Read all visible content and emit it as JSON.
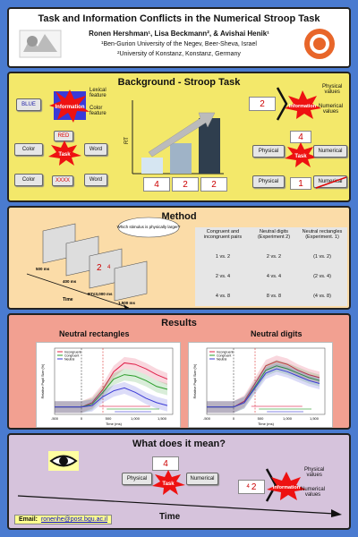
{
  "header": {
    "title": "Task and Information Conflicts in the Numerical Stroop Task",
    "authors": "Ronen Hershman¹, Lisa Beckmann², & Avishai Henik¹",
    "affiliation1": "¹Ben-Gurion University of the Negev, Beer-Sheva, Israel",
    "affiliation2": "²University of Konstanz, Konstanz, Germany"
  },
  "background": {
    "title": "Background - Stroop Task",
    "lexical_label": "Lexical\nfeature",
    "color_label": "Color\nfeature",
    "blue_word": "BLUE",
    "information_star": "Information",
    "red_word": "RED",
    "task_star": "Task",
    "color_box": "Color",
    "word_box": "Word",
    "xxxx": "XXXX",
    "rt_label": "RT",
    "cards": [
      "4",
      "2",
      "2"
    ],
    "physical_values": "Physical\nvalues",
    "numerical_values": "Numerical\nvalues",
    "number_pair_left": "2",
    "number_pair_right": "2",
    "info_num_card": "4",
    "physical_box": "Physical",
    "numerical_box": "Numerical",
    "card_one": "1"
  },
  "method": {
    "title": "Method",
    "bubble": "Which stimulus is physically larger?",
    "time_labels": [
      "500 ms",
      "400 ms",
      "RT≤3,000 ms",
      "1,500 ms"
    ],
    "stim_nums": [
      "2",
      "4"
    ],
    "time_axis": "Time",
    "table_headers": [
      "Congruent and incongruent pairs",
      "Neutral digits (Experiment 2)",
      "Neutral rectangles (Experiment. 1)"
    ],
    "table_rows": [
      [
        "1 vs. 2",
        "2 vs. 2",
        "(1 vs. 2)"
      ],
      [
        "2 vs. 4",
        "4 vs. 4",
        "(2 vs. 4)"
      ],
      [
        "4 vs. 8",
        "8 vs. 8",
        "(4 vs. 8)"
      ]
    ]
  },
  "results": {
    "title": "Results",
    "subtitle_left": "Neutral rectangles",
    "subtitle_right": "Neutral digits",
    "legend": [
      "Incongruent",
      "Congruent",
      "Neutral"
    ],
    "ylabel": "Relative Pupil Size (%)",
    "xlabel": "Time (ms)",
    "xticks": [
      "-500",
      "0",
      "500",
      "1,000",
      "1,500"
    ],
    "colors": {
      "incongruent": "#e0204a",
      "congruent": "#2a9d2a",
      "neutral": "#3b3bd6"
    }
  },
  "meaning": {
    "title": "What does it mean?",
    "card_num": "4",
    "physical_box": "Physical",
    "numerical_box": "Numerical",
    "task_star": "Task",
    "info_star": "Information",
    "physical_values": "Physical\nvalues",
    "numerical_values": "Numerical\nvalues",
    "num_left": "4",
    "num_right": "2",
    "time_label": "Time"
  },
  "footer": {
    "email_label": "Email:",
    "email": "ronenhe@post.bgu.ac.il"
  },
  "chart_data": [
    {
      "type": "line",
      "title": "Neutral rectangles",
      "xlabel": "Time (ms)",
      "ylabel": "Relative Pupil Size (%)",
      "xlim": [
        -500,
        1700
      ],
      "x": [
        -500,
        -250,
        0,
        200,
        400,
        600,
        800,
        1000,
        1200,
        1400,
        1600
      ],
      "series": [
        {
          "name": "Incongruent",
          "values": [
            0,
            0,
            0,
            0.3,
            1.2,
            2.4,
            3.0,
            2.9,
            2.6,
            2.2,
            1.9
          ]
        },
        {
          "name": "Congruent",
          "values": [
            0,
            0,
            0,
            0.2,
            1.0,
            1.9,
            2.2,
            2.1,
            1.8,
            1.4,
            1.2
          ]
        },
        {
          "name": "Neutral",
          "values": [
            0,
            0,
            0,
            0.1,
            0.7,
            1.1,
            1.3,
            1.0,
            0.6,
            0.3,
            0.1
          ]
        }
      ]
    },
    {
      "type": "line",
      "title": "Neutral digits",
      "xlabel": "Time (ms)",
      "ylabel": "Relative Pupil Size (%)",
      "xlim": [
        -500,
        1700
      ],
      "x": [
        -500,
        -250,
        0,
        200,
        400,
        600,
        800,
        1000,
        1200,
        1400,
        1600
      ],
      "series": [
        {
          "name": "Incongruent",
          "values": [
            0,
            0,
            0,
            0.4,
            1.6,
            2.8,
            3.1,
            2.9,
            2.5,
            2.2,
            2.0
          ]
        },
        {
          "name": "Congruent",
          "values": [
            0,
            0,
            0,
            0.3,
            1.4,
            2.5,
            2.8,
            2.6,
            2.3,
            2.0,
            1.8
          ]
        },
        {
          "name": "Neutral",
          "values": [
            0,
            0,
            0,
            0.3,
            1.3,
            2.3,
            2.6,
            2.4,
            2.1,
            1.8,
            1.6
          ]
        }
      ]
    }
  ]
}
